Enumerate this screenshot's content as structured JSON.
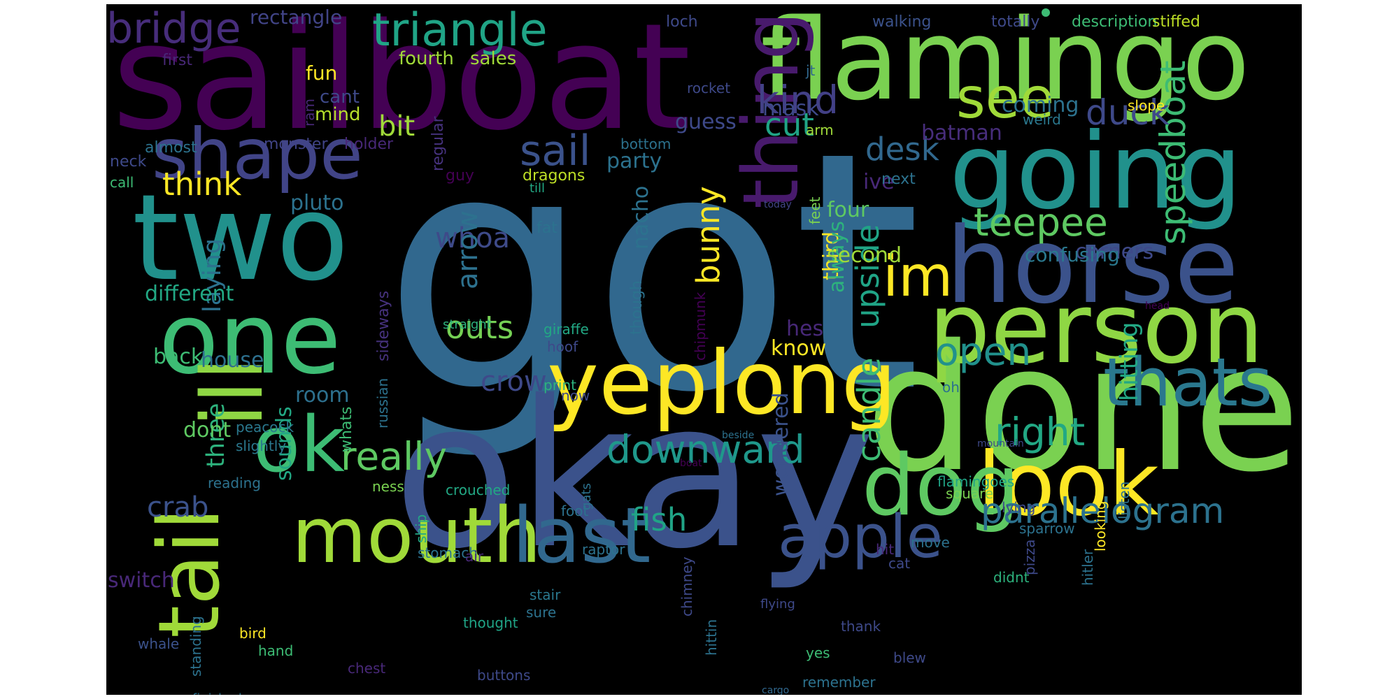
{
  "words": [
    {
      "t": "got",
      "c": "#31688e"
    },
    {
      "t": "okay",
      "c": "#3b528b"
    },
    {
      "t": "done",
      "c": "#7ad151"
    },
    {
      "t": "sailboat",
      "c": "#440154"
    },
    {
      "t": "flamingo",
      "c": "#7ad151"
    },
    {
      "t": "two",
      "c": "#21918c"
    },
    {
      "t": "going",
      "c": "#21918c"
    },
    {
      "t": "horse",
      "c": "#3b528b"
    },
    {
      "t": "person",
      "c": "#8fd744"
    },
    {
      "t": "one",
      "c": "#3dbc74"
    },
    {
      "t": "yeplong",
      "c": "#fde725"
    },
    {
      "t": "look",
      "c": "#fde725"
    },
    {
      "t": "mouth",
      "c": "#a0da39"
    },
    {
      "t": "last",
      "c": "#31688e"
    },
    {
      "t": "tail",
      "c": "#a0da39"
    },
    {
      "t": "ok",
      "c": "#3dbc74"
    },
    {
      "t": "ill",
      "c": "#8fd744"
    },
    {
      "t": "dog",
      "c": "#5ec962"
    },
    {
      "t": "shape",
      "c": "#414487"
    },
    {
      "t": "thing",
      "c": "#481a6c"
    },
    {
      "t": "thats",
      "c": "#2a788e"
    },
    {
      "t": "im",
      "c": "#fde725"
    },
    {
      "t": "apple",
      "c": "#3b528b"
    },
    {
      "t": "see",
      "c": "#a0da39"
    },
    {
      "t": "bridge",
      "c": "#472d7b"
    },
    {
      "t": "triangle",
      "c": "#20a486"
    },
    {
      "t": "downward",
      "c": "#1f988b"
    },
    {
      "t": "teepee",
      "c": "#5ec962"
    },
    {
      "t": "parallelogram",
      "c": "#2c728e"
    },
    {
      "t": "speedboat",
      "c": "#3dbc74"
    },
    {
      "t": "sail",
      "c": "#3b528b"
    },
    {
      "t": "kind",
      "c": "#424086"
    },
    {
      "t": "duck",
      "c": "#3e4989"
    },
    {
      "t": "desk",
      "c": "#31688e"
    },
    {
      "t": "open",
      "c": "#21918c"
    },
    {
      "t": "right",
      "c": "#22a884"
    },
    {
      "t": "really",
      "c": "#5ec962"
    },
    {
      "t": "house",
      "c": "#2d708e"
    },
    {
      "t": "candle",
      "c": "#3dbc74"
    },
    {
      "t": "fish",
      "c": "#20a486"
    },
    {
      "t": "crab",
      "c": "#3b528b"
    },
    {
      "t": "upside",
      "c": "#20a486"
    },
    {
      "t": "outs",
      "c": "#75d054"
    },
    {
      "t": "bunny",
      "c": "#fde725"
    },
    {
      "t": "whoa",
      "c": "#3e4a89"
    },
    {
      "t": "arrow",
      "c": "#2d718e"
    },
    {
      "t": "cut",
      "c": "#20a486"
    },
    {
      "t": "bit",
      "c": "#a0da39"
    },
    {
      "t": "think",
      "c": "#fde725"
    },
    {
      "t": "crow",
      "c": "#3e4989"
    },
    {
      "t": "hitting",
      "c": "#22a884"
    },
    {
      "t": "three",
      "c": "#2db27d"
    },
    {
      "t": "laying",
      "c": "#2c728e"
    },
    {
      "t": "different",
      "c": "#22a884"
    },
    {
      "t": "room",
      "c": "#2d708e"
    },
    {
      "t": "nacho",
      "c": "#2c728e"
    },
    {
      "t": "hes",
      "c": "#482878"
    },
    {
      "t": "know",
      "c": "#fde725"
    },
    {
      "t": "four",
      "c": "#5ec962"
    },
    {
      "t": "third",
      "c": "#fde725"
    },
    {
      "t": "always",
      "c": "#2db27d"
    },
    {
      "t": "pluto",
      "c": "#2c728e"
    },
    {
      "t": "sounds",
      "c": "#22a884"
    },
    {
      "t": "dont",
      "c": "#5ec962"
    },
    {
      "t": "back",
      "c": "#3dbc74"
    },
    {
      "t": "wondered",
      "c": "#3b528b"
    },
    {
      "t": "switch",
      "c": "#482878"
    },
    {
      "t": "party",
      "c": "#2c728e"
    },
    {
      "t": "guess",
      "c": "#3e4989"
    },
    {
      "t": "batman",
      "c": "#472d7b"
    },
    {
      "t": "coming",
      "c": "#2c728e"
    },
    {
      "t": "mask",
      "c": "#3e4989"
    },
    {
      "t": "second",
      "c": "#a0da39"
    },
    {
      "t": "corners",
      "c": "#3e4989"
    },
    {
      "t": "ive",
      "c": "#482878"
    },
    {
      "t": "confusing",
      "c": "#2a788e"
    },
    {
      "t": "rectangle",
      "c": "#414487"
    },
    {
      "t": "fun",
      "c": "#fde725"
    },
    {
      "t": "fourth",
      "c": "#a0da39"
    },
    {
      "t": "sales",
      "c": "#a0da39"
    },
    {
      "t": "cant",
      "c": "#3e4989"
    },
    {
      "t": "mind",
      "c": "#b5de2b"
    },
    {
      "t": "first",
      "c": "#482878"
    },
    {
      "t": "regular",
      "c": "#46327e"
    },
    {
      "t": "walking",
      "c": "#3b528b"
    },
    {
      "t": "totally",
      "c": "#3e4989"
    },
    {
      "t": "description",
      "c": "#3dbc74"
    },
    {
      "t": "stiffed",
      "c": "#bddf26"
    },
    {
      "t": "loch",
      "c": "#3e4989"
    },
    {
      "t": "jt",
      "c": "#31688e"
    },
    {
      "t": "rocket",
      "c": "#3e4989"
    },
    {
      "t": "weird",
      "c": "#2a788e"
    },
    {
      "t": "slope",
      "c": "#fde725"
    },
    {
      "t": "arm",
      "c": "#a0da39"
    },
    {
      "t": "bottom",
      "c": "#2c728e"
    },
    {
      "t": "holder",
      "c": "#482878"
    },
    {
      "t": "monster",
      "c": "#414487"
    },
    {
      "t": "almost",
      "c": "#2c728e"
    },
    {
      "t": "neck",
      "c": "#3e4989"
    },
    {
      "t": "call",
      "c": "#3dbc74"
    },
    {
      "t": "ram",
      "c": "#482878"
    },
    {
      "t": "guy",
      "c": "#440154"
    },
    {
      "t": "dragons",
      "c": "#bddf26"
    },
    {
      "t": "next",
      "c": "#2c728e"
    },
    {
      "t": "till",
      "c": "#22a884"
    },
    {
      "t": "fat",
      "c": "#2c728e"
    },
    {
      "t": "feet",
      "c": "#7ad151"
    },
    {
      "t": "today",
      "c": "#414487"
    },
    {
      "t": "though",
      "c": "#2c728e"
    },
    {
      "t": "chipmunk",
      "c": "#440154"
    },
    {
      "t": "sideways",
      "c": "#46327e"
    },
    {
      "t": "straight",
      "c": "#2db27d"
    },
    {
      "t": "giraffe",
      "c": "#22a884"
    },
    {
      "t": "hoof",
      "c": "#3e4989"
    },
    {
      "t": "print",
      "c": "#2db27d"
    },
    {
      "t": "now",
      "c": "#3e4989"
    },
    {
      "t": "russian",
      "c": "#2c728e"
    },
    {
      "t": "whats",
      "c": "#3dbc74"
    },
    {
      "t": "peacock",
      "c": "#2a788e"
    },
    {
      "t": "slightly",
      "c": "#2a788e"
    },
    {
      "t": "reading",
      "c": "#2c728e"
    },
    {
      "t": "ness",
      "c": "#7ad151"
    },
    {
      "t": "crouched",
      "c": "#22a884"
    },
    {
      "t": "gats",
      "c": "#2c728e"
    },
    {
      "t": "foot",
      "c": "#2c728e"
    },
    {
      "t": "raptor",
      "c": "#2c728e"
    },
    {
      "t": "stomach",
      "c": "#2c728e"
    },
    {
      "t": "ship",
      "c": "#22a884"
    },
    {
      "t": "air",
      "c": "#482878"
    },
    {
      "t": "thought",
      "c": "#20a486"
    },
    {
      "t": "sure",
      "c": "#2c728e"
    },
    {
      "t": "stair",
      "c": "#2a788e"
    },
    {
      "t": "hittin",
      "c": "#2c728e"
    },
    {
      "t": "flying",
      "c": "#3e4989"
    },
    {
      "t": "chimney",
      "c": "#3e4989"
    },
    {
      "t": "standing",
      "c": "#2c728e"
    },
    {
      "t": "whale",
      "c": "#3b528b"
    },
    {
      "t": "bird",
      "c": "#fde725"
    },
    {
      "t": "hand",
      "c": "#3dbc74"
    },
    {
      "t": "chest",
      "c": "#482878"
    },
    {
      "t": "buttons",
      "c": "#3e4989"
    },
    {
      "t": "unfinished",
      "c": "#2c728e"
    },
    {
      "t": "cargo",
      "c": "#31688e"
    },
    {
      "t": "remember",
      "c": "#2c728e"
    },
    {
      "t": "blew",
      "c": "#3e4989"
    },
    {
      "t": "thank",
      "c": "#3e4989"
    },
    {
      "t": "yes",
      "c": "#3dbc74"
    },
    {
      "t": "cat",
      "c": "#3e4989"
    },
    {
      "t": "move",
      "c": "#2c728e"
    },
    {
      "t": "hit",
      "c": "#482878"
    },
    {
      "t": "didnt",
      "c": "#2db27d"
    },
    {
      "t": "pizza",
      "c": "#3e4989"
    },
    {
      "t": "hitler",
      "c": "#2c728e"
    },
    {
      "t": "listen",
      "c": "#2c728e"
    },
    {
      "t": "looking",
      "c": "#fde725"
    },
    {
      "t": "sparrow",
      "c": "#2c728e"
    },
    {
      "t": "lying",
      "c": "#3e4989"
    },
    {
      "t": "square",
      "c": "#7ad151"
    },
    {
      "t": "oh",
      "c": "#2c728e"
    },
    {
      "t": "flamingoes",
      "c": "#20a486"
    },
    {
      "t": "mountain",
      "c": "#3e4989"
    },
    {
      "t": "beside",
      "c": "#2c728e"
    },
    {
      "t": "boat",
      "c": "#440154"
    },
    {
      "t": "head",
      "c": "#440154"
    }
  ]
}
